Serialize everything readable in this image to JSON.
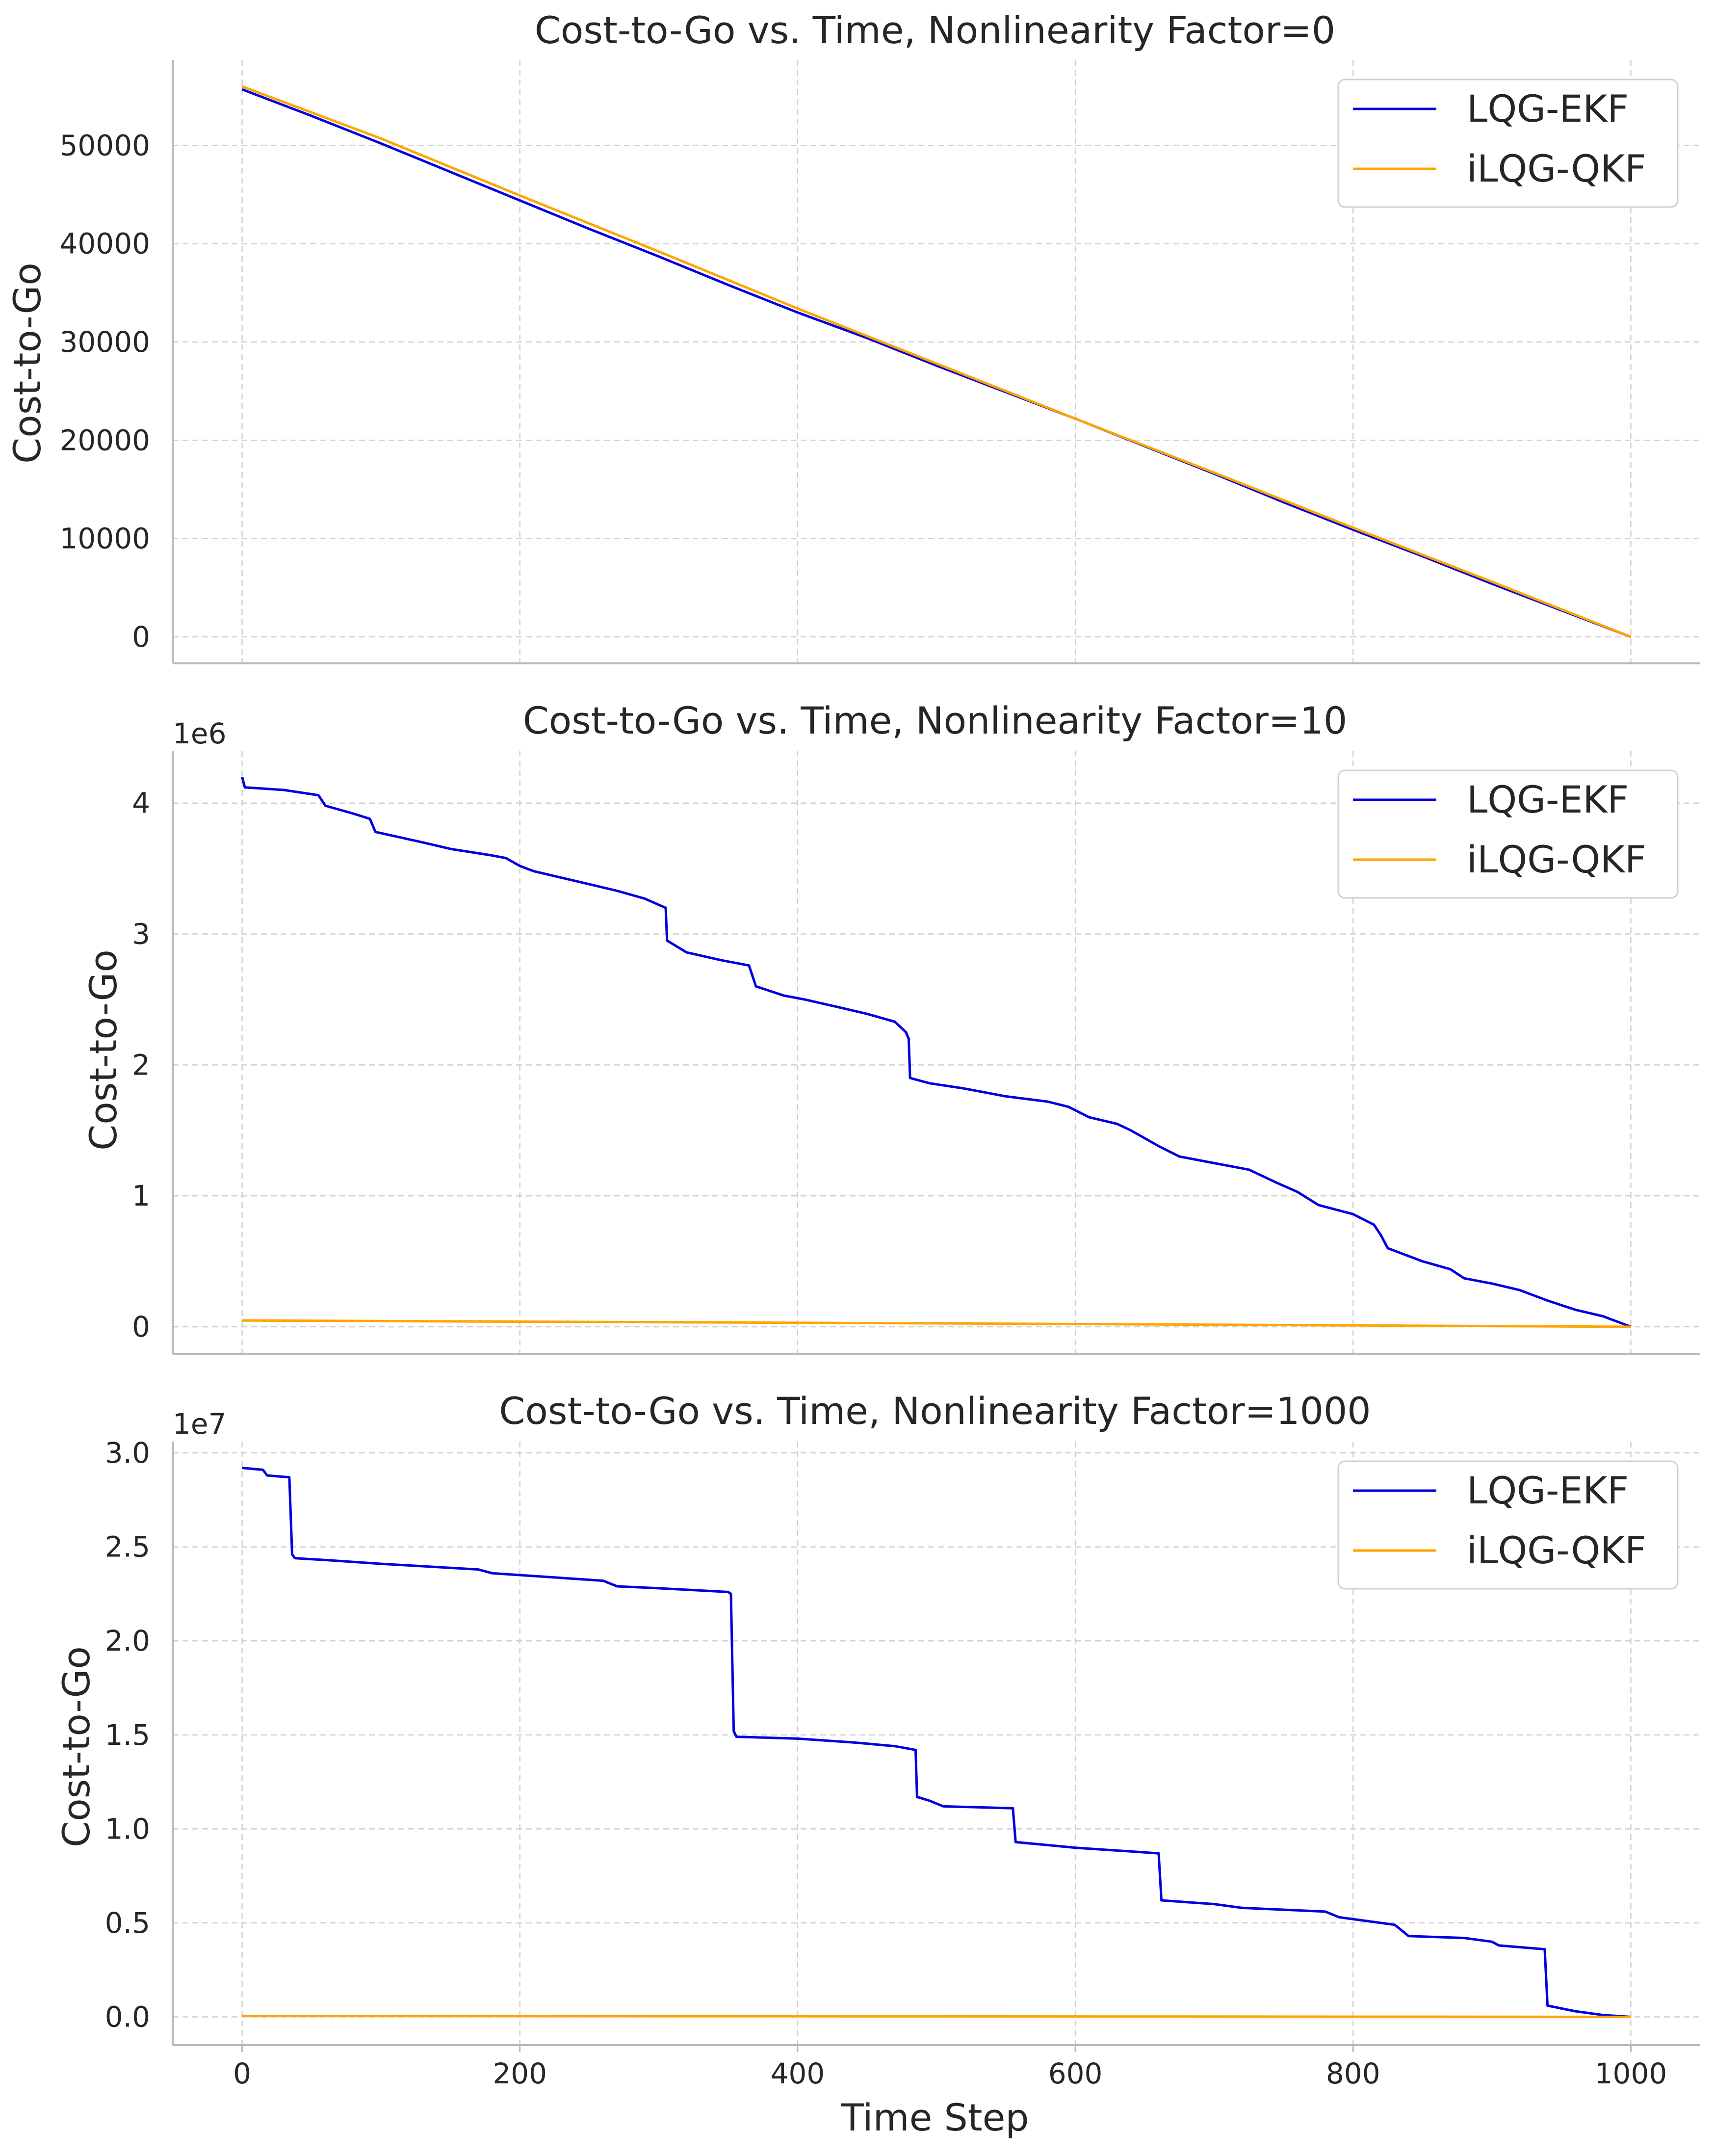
{
  "chart_data": [
    {
      "type": "line",
      "title": "Cost-to-Go vs. Time, Nonlinearity Factor=0",
      "xlabel": "",
      "ylabel": "Cost-to-Go",
      "offset_text": "",
      "xlim": [
        -50,
        1050
      ],
      "ylim": [
        -2700,
        58700
      ],
      "x_ticks": [
        0,
        200,
        400,
        600,
        800,
        1000
      ],
      "x_tick_labels": [
        "",
        "",
        "",
        "",
        "",
        ""
      ],
      "y_ticks": [
        0,
        10000,
        20000,
        30000,
        40000,
        50000
      ],
      "y_tick_labels": [
        "0",
        "10000",
        "20000",
        "30000",
        "40000",
        "50000"
      ],
      "grid": true,
      "legend_position": "top-right",
      "series": [
        {
          "name": "LQG-EKF",
          "color": "#0000e0",
          "points": [
            [
              0,
              55700
            ],
            [
              50,
              53000
            ],
            [
              100,
              50200
            ],
            [
              150,
              47300
            ],
            [
              200,
              44400
            ],
            [
              250,
              41500
            ],
            [
              300,
              38700
            ],
            [
              350,
              35800
            ],
            [
              400,
              33000
            ],
            [
              450,
              30400
            ],
            [
              500,
              27600
            ],
            [
              550,
              24900
            ],
            [
              600,
              22200
            ],
            [
              650,
              19400
            ],
            [
              700,
              16600
            ],
            [
              750,
              13700
            ],
            [
              800,
              10900
            ],
            [
              850,
              8200
            ],
            [
              900,
              5400
            ],
            [
              950,
              2700
            ],
            [
              1000,
              0
            ]
          ]
        },
        {
          "name": "iLQG-QKF",
          "color": "#ffa500",
          "points": [
            [
              0,
              56000
            ],
            [
              100,
              50700
            ],
            [
              200,
              44900
            ],
            [
              300,
              39200
            ],
            [
              400,
              33400
            ],
            [
              500,
              27800
            ],
            [
              600,
              22200
            ],
            [
              700,
              16700
            ],
            [
              800,
              11100
            ],
            [
              900,
              5600
            ],
            [
              1000,
              0
            ]
          ]
        }
      ]
    },
    {
      "type": "line",
      "title": "Cost-to-Go vs. Time, Nonlinearity Factor=10",
      "xlabel": "",
      "ylabel": "Cost-to-Go",
      "offset_text": "1e6",
      "xlim": [
        -50,
        1050
      ],
      "ylim": [
        -0.21,
        4.4
      ],
      "x_ticks": [
        0,
        200,
        400,
        600,
        800,
        1000
      ],
      "x_tick_labels": [
        "",
        "",
        "",
        "",
        "",
        ""
      ],
      "y_ticks": [
        0,
        1,
        2,
        3,
        4
      ],
      "y_tick_labels": [
        "0",
        "1",
        "2",
        "3",
        "4"
      ],
      "grid": true,
      "legend_position": "top-right",
      "series": [
        {
          "name": "LQG-EKF",
          "color": "#0000e0",
          "points": [
            [
              0,
              4.2
            ],
            [
              2,
              4.12
            ],
            [
              30,
              4.1
            ],
            [
              55,
              4.06
            ],
            [
              60,
              3.98
            ],
            [
              80,
              3.92
            ],
            [
              92,
              3.88
            ],
            [
              96,
              3.78
            ],
            [
              130,
              3.7
            ],
            [
              150,
              3.65
            ],
            [
              180,
              3.6
            ],
            [
              190,
              3.58
            ],
            [
              200,
              3.52
            ],
            [
              210,
              3.48
            ],
            [
              230,
              3.43
            ],
            [
              250,
              3.38
            ],
            [
              270,
              3.33
            ],
            [
              290,
              3.27
            ],
            [
              305,
              3.2
            ],
            [
              306,
              2.95
            ],
            [
              320,
              2.86
            ],
            [
              345,
              2.8
            ],
            [
              365,
              2.76
            ],
            [
              370,
              2.6
            ],
            [
              390,
              2.53
            ],
            [
              405,
              2.5
            ],
            [
              430,
              2.44
            ],
            [
              450,
              2.39
            ],
            [
              470,
              2.33
            ],
            [
              478,
              2.25
            ],
            [
              480,
              2.2
            ],
            [
              481,
              1.9
            ],
            [
              495,
              1.86
            ],
            [
              520,
              1.82
            ],
            [
              550,
              1.76
            ],
            [
              580,
              1.72
            ],
            [
              595,
              1.68
            ],
            [
              610,
              1.6
            ],
            [
              630,
              1.55
            ],
            [
              640,
              1.5
            ],
            [
              650,
              1.44
            ],
            [
              660,
              1.38
            ],
            [
              675,
              1.3
            ],
            [
              700,
              1.25
            ],
            [
              725,
              1.2
            ],
            [
              745,
              1.1
            ],
            [
              760,
              1.03
            ],
            [
              775,
              0.93
            ],
            [
              800,
              0.86
            ],
            [
              815,
              0.78
            ],
            [
              820,
              0.7
            ],
            [
              825,
              0.6
            ],
            [
              850,
              0.5
            ],
            [
              870,
              0.44
            ],
            [
              880,
              0.37
            ],
            [
              900,
              0.33
            ],
            [
              920,
              0.28
            ],
            [
              940,
              0.2
            ],
            [
              960,
              0.13
            ],
            [
              980,
              0.08
            ],
            [
              1000,
              0
            ]
          ]
        },
        {
          "name": "iLQG-QKF",
          "color": "#ffa500",
          "points": [
            [
              0,
              0.048
            ],
            [
              500,
              0.026
            ],
            [
              1000,
              0
            ]
          ]
        }
      ]
    },
    {
      "type": "line",
      "title": "Cost-to-Go vs. Time, Nonlinearity Factor=1000",
      "xlabel": "Time Step",
      "ylabel": "Cost-to-Go",
      "offset_text": "1e7",
      "xlim": [
        -50,
        1050
      ],
      "ylim": [
        -1.5,
        30.6
      ],
      "x_ticks": [
        0,
        200,
        400,
        600,
        800,
        1000
      ],
      "x_tick_labels": [
        "0",
        "200",
        "400",
        "600",
        "800",
        "1000"
      ],
      "y_ticks": [
        0,
        5,
        10,
        15,
        20,
        25,
        30
      ],
      "y_tick_labels": [
        "0.0",
        "0.5",
        "1.0",
        "1.5",
        "2.0",
        "2.5",
        "3.0"
      ],
      "grid": true,
      "legend_position": "top-right",
      "series": [
        {
          "name": "LQG-EKF",
          "color": "#0000e0",
          "points": [
            [
              0,
              29.2
            ],
            [
              15,
              29.1
            ],
            [
              18,
              28.8
            ],
            [
              34,
              28.7
            ],
            [
              36,
              24.6
            ],
            [
              38,
              24.4
            ],
            [
              60,
              24.3
            ],
            [
              100,
              24.1
            ],
            [
              170,
              23.8
            ],
            [
              180,
              23.6
            ],
            [
              260,
              23.2
            ],
            [
              270,
              22.9
            ],
            [
              300,
              22.8
            ],
            [
              350,
              22.6
            ],
            [
              352,
              22.5
            ],
            [
              354,
              15.2
            ],
            [
              356,
              14.9
            ],
            [
              400,
              14.8
            ],
            [
              440,
              14.6
            ],
            [
              470,
              14.4
            ],
            [
              485,
              14.2
            ],
            [
              486,
              11.7
            ],
            [
              495,
              11.5
            ],
            [
              505,
              11.2
            ],
            [
              555,
              11.1
            ],
            [
              557,
              9.3
            ],
            [
              600,
              9.0
            ],
            [
              640,
              8.8
            ],
            [
              660,
              8.7
            ],
            [
              662,
              6.2
            ],
            [
              700,
              6.0
            ],
            [
              720,
              5.8
            ],
            [
              780,
              5.6
            ],
            [
              790,
              5.3
            ],
            [
              810,
              5.1
            ],
            [
              830,
              4.9
            ],
            [
              835,
              4.6
            ],
            [
              840,
              4.3
            ],
            [
              880,
              4.2
            ],
            [
              900,
              4.0
            ],
            [
              905,
              3.8
            ],
            [
              938,
              3.6
            ],
            [
              940,
              0.6
            ],
            [
              960,
              0.3
            ],
            [
              980,
              0.1
            ],
            [
              1000,
              0
            ]
          ]
        },
        {
          "name": "iLQG-QKF",
          "color": "#ffa500",
          "points": [
            [
              0,
              0.05
            ],
            [
              500,
              0.03
            ],
            [
              1000,
              0
            ]
          ]
        }
      ]
    }
  ]
}
